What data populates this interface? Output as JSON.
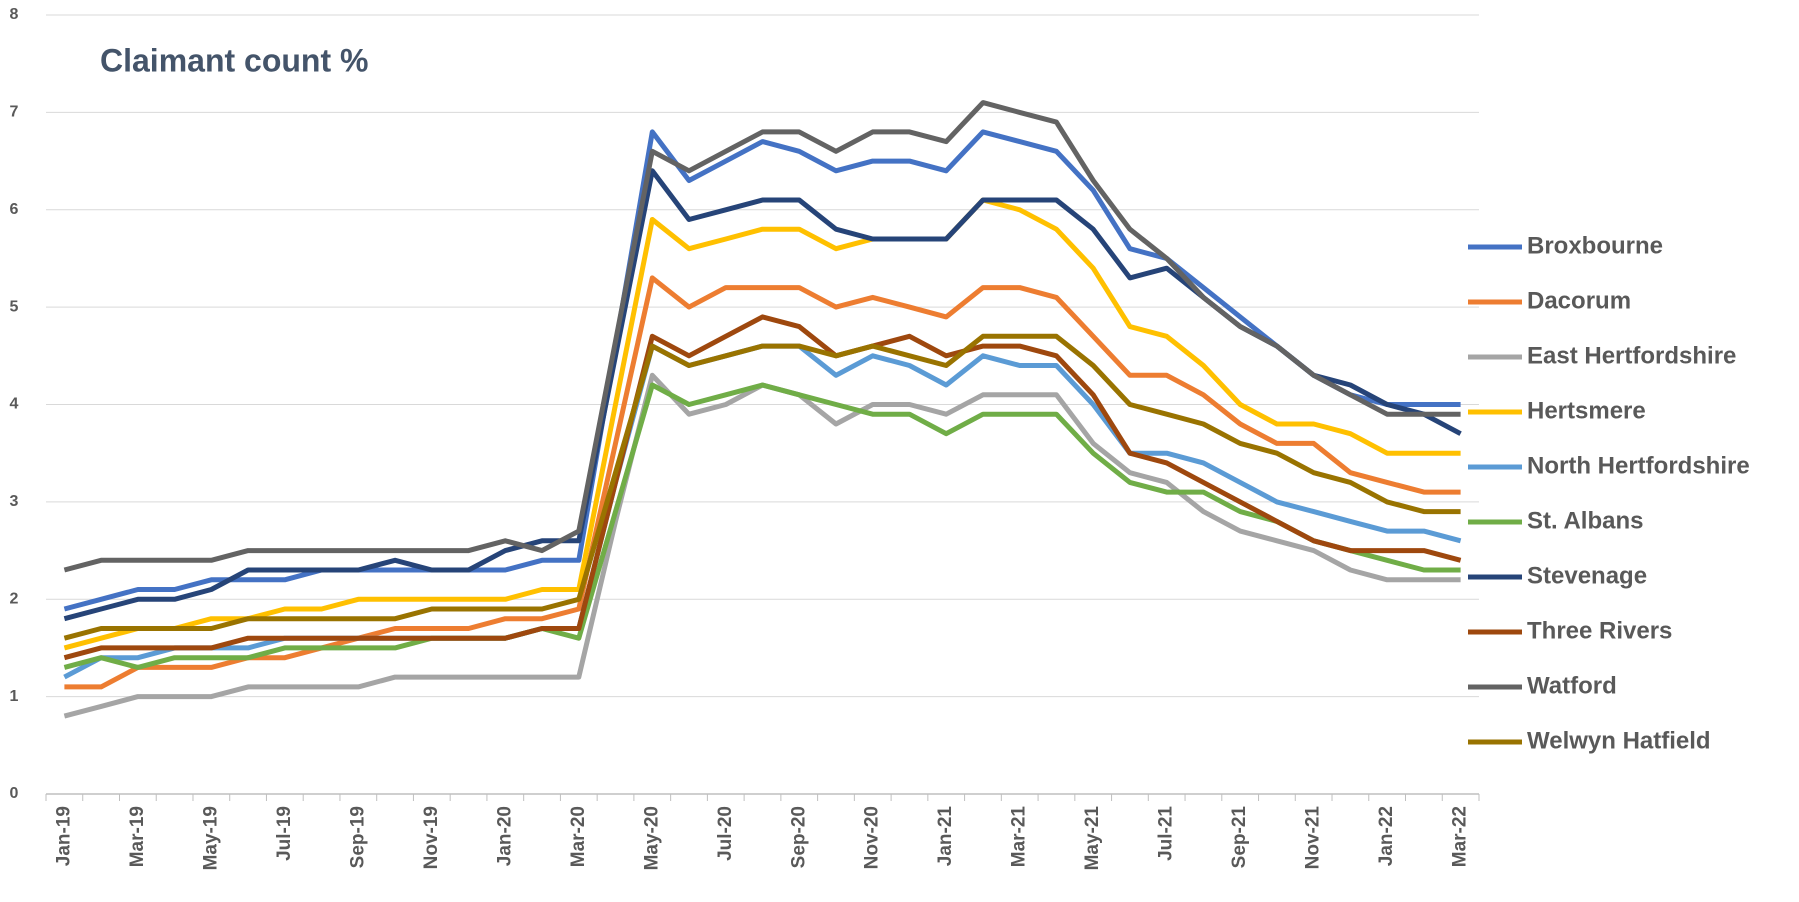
{
  "chart_data": {
    "type": "line",
    "title": "Claimant count %",
    "categories": [
      "Jan-19",
      null,
      "Mar-19",
      null,
      "May-19",
      null,
      "Jul-19",
      null,
      "Sep-19",
      null,
      "Nov-19",
      null,
      "Jan-20",
      null,
      "Mar-20",
      null,
      "May-20",
      null,
      "Jul-20",
      null,
      "Sep-20",
      null,
      "Nov-20",
      null,
      "Jan-21",
      null,
      "Mar-21",
      null,
      "May-21",
      null,
      "Jul-21",
      null,
      "Sep-21",
      null,
      "Nov-21",
      null,
      "Jan-22",
      null,
      "Mar-22"
    ],
    "series": [
      {
        "name": "Broxbourne",
        "color": "#4472c4",
        "values": [
          1.9,
          2.0,
          2.1,
          2.1,
          2.2,
          2.2,
          2.2,
          2.3,
          2.3,
          2.3,
          2.3,
          2.3,
          2.3,
          2.4,
          2.4,
          4.6,
          6.8,
          6.3,
          6.5,
          6.7,
          6.6,
          6.4,
          6.5,
          6.5,
          6.4,
          6.8,
          6.7,
          6.6,
          6.2,
          5.6,
          5.5,
          5.2,
          4.9,
          4.6,
          4.3,
          4.1,
          4.0,
          4.0,
          4.0
        ]
      },
      {
        "name": "Dacorum",
        "color": "#ed7d31",
        "values": [
          1.1,
          1.1,
          1.3,
          1.3,
          1.3,
          1.4,
          1.4,
          1.5,
          1.6,
          1.7,
          1.7,
          1.7,
          1.8,
          1.8,
          1.9,
          3.6,
          5.3,
          5.0,
          5.2,
          5.2,
          5.2,
          5.0,
          5.1,
          5.0,
          4.9,
          5.2,
          5.2,
          5.1,
          4.7,
          4.3,
          4.3,
          4.1,
          3.8,
          3.6,
          3.6,
          3.3,
          3.2,
          3.1,
          3.1
        ]
      },
      {
        "name": "East Hertfordshire",
        "color": "#a5a5a5",
        "values": [
          0.8,
          0.9,
          1.0,
          1.0,
          1.0,
          1.1,
          1.1,
          1.1,
          1.1,
          1.2,
          1.2,
          1.2,
          1.2,
          1.2,
          1.2,
          2.8,
          4.3,
          3.9,
          4.0,
          4.2,
          4.1,
          3.8,
          4.0,
          4.0,
          3.9,
          4.1,
          4.1,
          4.1,
          3.6,
          3.3,
          3.2,
          2.9,
          2.7,
          2.6,
          2.5,
          2.3,
          2.2,
          2.2,
          2.2
        ]
      },
      {
        "name": "Hertsmere",
        "color": "#ffc000",
        "values": [
          1.5,
          1.6,
          1.7,
          1.7,
          1.8,
          1.8,
          1.9,
          1.9,
          2.0,
          2.0,
          2.0,
          2.0,
          2.0,
          2.1,
          2.1,
          4.0,
          5.9,
          5.6,
          5.7,
          5.8,
          5.8,
          5.6,
          5.7,
          5.7,
          5.7,
          6.1,
          6.0,
          5.8,
          5.4,
          4.8,
          4.7,
          4.4,
          4.0,
          3.8,
          3.8,
          3.7,
          3.5,
          3.5,
          3.5
        ]
      },
      {
        "name": "North Hertfordshire",
        "color": "#5b9bd5",
        "values": [
          1.2,
          1.4,
          1.4,
          1.5,
          1.5,
          1.5,
          1.6,
          1.6,
          1.6,
          1.6,
          1.6,
          1.6,
          1.6,
          1.7,
          1.7,
          3.2,
          4.6,
          4.4,
          4.5,
          4.6,
          4.6,
          4.3,
          4.5,
          4.4,
          4.2,
          4.5,
          4.4,
          4.4,
          4.0,
          3.5,
          3.5,
          3.4,
          3.2,
          3.0,
          2.9,
          2.8,
          2.7,
          2.7,
          2.6
        ]
      },
      {
        "name": "St. Albans",
        "color": "#70ad47",
        "values": [
          1.3,
          1.4,
          1.3,
          1.4,
          1.4,
          1.4,
          1.5,
          1.5,
          1.5,
          1.5,
          1.6,
          1.6,
          1.6,
          1.7,
          1.6,
          2.9,
          4.2,
          4.0,
          4.1,
          4.2,
          4.1,
          4.0,
          3.9,
          3.9,
          3.7,
          3.9,
          3.9,
          3.9,
          3.5,
          3.2,
          3.1,
          3.1,
          2.9,
          2.8,
          2.6,
          2.5,
          2.4,
          2.3,
          2.3
        ]
      },
      {
        "name": "Stevenage",
        "color": "#264478",
        "values": [
          1.8,
          1.9,
          2.0,
          2.0,
          2.1,
          2.3,
          2.3,
          2.3,
          2.3,
          2.4,
          2.3,
          2.3,
          2.5,
          2.6,
          2.6,
          4.5,
          6.4,
          5.9,
          6.0,
          6.1,
          6.1,
          5.8,
          5.7,
          5.7,
          5.7,
          6.1,
          6.1,
          6.1,
          5.8,
          5.3,
          5.4,
          5.1,
          4.8,
          4.6,
          4.3,
          4.2,
          4.0,
          3.9,
          3.7
        ]
      },
      {
        "name": "Three Rivers",
        "color": "#9e480e",
        "values": [
          1.4,
          1.5,
          1.5,
          1.5,
          1.5,
          1.6,
          1.6,
          1.6,
          1.6,
          1.6,
          1.6,
          1.6,
          1.6,
          1.7,
          1.7,
          3.2,
          4.7,
          4.5,
          4.7,
          4.9,
          4.8,
          4.5,
          4.6,
          4.7,
          4.5,
          4.6,
          4.6,
          4.5,
          4.1,
          3.5,
          3.4,
          3.2,
          3.0,
          2.8,
          2.6,
          2.5,
          2.5,
          2.5,
          2.4
        ]
      },
      {
        "name": "Watford",
        "color": "#636363",
        "values": [
          2.3,
          2.4,
          2.4,
          2.4,
          2.4,
          2.5,
          2.5,
          2.5,
          2.5,
          2.5,
          2.5,
          2.5,
          2.6,
          2.5,
          2.7,
          4.65,
          6.6,
          6.4,
          6.6,
          6.8,
          6.8,
          6.6,
          6.8,
          6.8,
          6.7,
          7.1,
          7.0,
          6.9,
          6.3,
          5.8,
          5.5,
          5.1,
          4.8,
          4.6,
          4.3,
          4.1,
          3.9,
          3.9,
          3.9
        ]
      },
      {
        "name": "Welwyn Hatfield",
        "color": "#997300",
        "values": [
          1.6,
          1.7,
          1.7,
          1.7,
          1.7,
          1.8,
          1.8,
          1.8,
          1.8,
          1.8,
          1.9,
          1.9,
          1.9,
          1.9,
          2.0,
          3.3,
          4.6,
          4.4,
          4.5,
          4.6,
          4.6,
          4.5,
          4.6,
          4.5,
          4.4,
          4.7,
          4.7,
          4.7,
          4.4,
          4.0,
          3.9,
          3.8,
          3.6,
          3.5,
          3.3,
          3.2,
          3.0,
          2.9,
          2.9
        ]
      }
    ],
    "ylim": [
      0,
      8
    ],
    "yticks": [
      0,
      1,
      2,
      3,
      4,
      5,
      6,
      7,
      8
    ],
    "grid": true,
    "legend": "right"
  }
}
